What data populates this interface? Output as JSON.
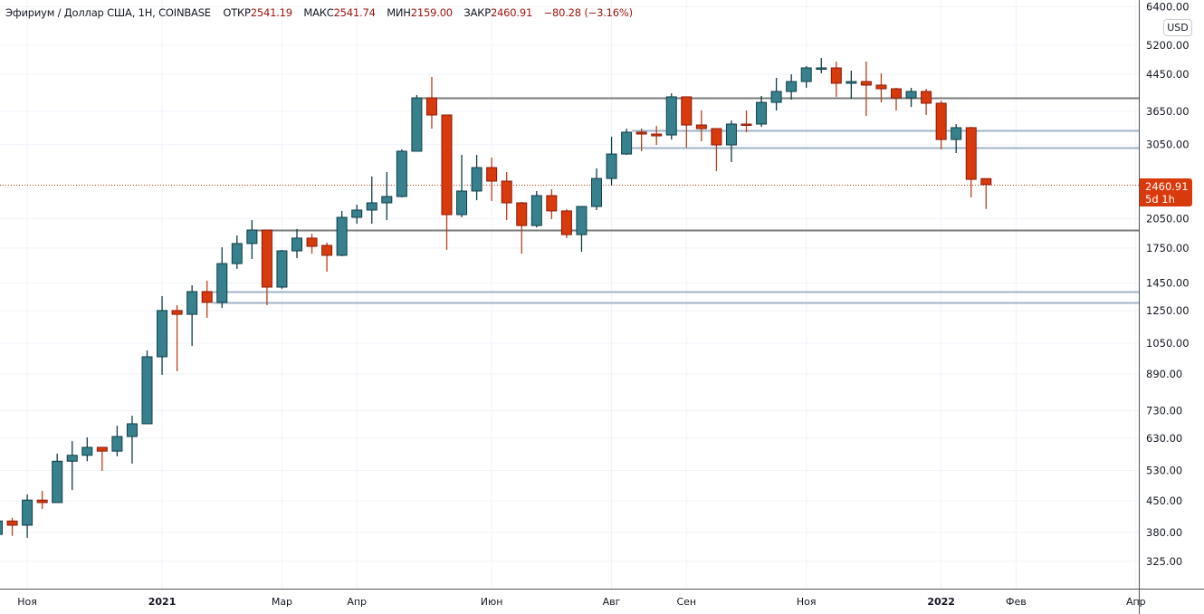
{
  "header": {
    "symbol": "Эфириум / Доллар США, 1Н, COINBASE",
    "open_label": "ОТКР",
    "open": "2541.19",
    "high_label": "МАКС",
    "high": "2541.74",
    "low_label": "МИН",
    "low": "2159.00",
    "close_label": "ЗАКР",
    "close": "2460.91",
    "change": "−80.28 (−3.16%)"
  },
  "currency_button": "USD",
  "price_label": {
    "price": "2460.91",
    "countdown": "5d 1h"
  },
  "colors": {
    "up": "#37818e",
    "up_border": "#0f3d47",
    "down": "#d83a0b",
    "down_border": "#8a1a0a",
    "level_dark": "#7b7b7b",
    "level_blue": "#9fb3c8",
    "last_price": "#d83a0b"
  },
  "chart_data": {
    "type": "candlestick",
    "scale": "log",
    "interval": "1W",
    "first_bar_date": "2020-10-19",
    "ylim": [
      290,
      6600
    ],
    "y_ticks": [
      "6400.00",
      "5200.00",
      "4450.00",
      "3650.00",
      "3050.00",
      "2050.00",
      "1750.00",
      "1450.00",
      "1250.00",
      "1050.00",
      "890.00",
      "730.00",
      "630.00",
      "530.00",
      "450.00",
      "380.00",
      "325.00"
    ],
    "x_labels": [
      {
        "date": "2020-11-02",
        "label": "Ноя",
        "bold": false
      },
      {
        "date": "2021-01-04",
        "label": "2021",
        "bold": true
      },
      {
        "date": "2021-03-01",
        "label": "Мар",
        "bold": false
      },
      {
        "date": "2021-04-05",
        "label": "Апр",
        "bold": false
      },
      {
        "date": "2021-06-07",
        "label": "Июн",
        "bold": false
      },
      {
        "date": "2021-08-02",
        "label": "Авг",
        "bold": false
      },
      {
        "date": "2021-09-06",
        "label": "Сен",
        "bold": false
      },
      {
        "date": "2021-11-01",
        "label": "Ноя",
        "bold": false
      },
      {
        "date": "2022-01-03",
        "label": "2022",
        "bold": true
      },
      {
        "date": "2022-02-07",
        "label": "Фев",
        "bold": false
      },
      {
        "date": "2022-04-04",
        "label": "Апр",
        "bold": false
      }
    ],
    "candles": [
      [
        376,
        404,
        370,
        404
      ],
      [
        404,
        411,
        373,
        395
      ],
      [
        395,
        466,
        369,
        452
      ],
      [
        452,
        475,
        431,
        446
      ],
      [
        446,
        580,
        446,
        557
      ],
      [
        557,
        620,
        477,
        575
      ],
      [
        575,
        633,
        557,
        600
      ],
      [
        600,
        600,
        529,
        588
      ],
      [
        588,
        674,
        572,
        636
      ],
      [
        636,
        711,
        550,
        681
      ],
      [
        681,
        1010,
        681,
        976
      ],
      [
        976,
        1352,
        886,
        1251
      ],
      [
        1251,
        1288,
        903,
        1226
      ],
      [
        1226,
        1433,
        1034,
        1385
      ],
      [
        1385,
        1468,
        1203,
        1307
      ],
      [
        1307,
        1757,
        1269,
        1610
      ],
      [
        1610,
        1872,
        1565,
        1793
      ],
      [
        1793,
        2033,
        1650,
        1928
      ],
      [
        1928,
        1928,
        1288,
        1419
      ],
      [
        1419,
        1733,
        1406,
        1724
      ],
      [
        1724,
        1938,
        1658,
        1846
      ],
      [
        1846,
        1890,
        1698,
        1766
      ],
      [
        1775,
        1802,
        1541,
        1683
      ],
      [
        1683,
        2136,
        1675,
        2064
      ],
      [
        2064,
        2209,
        1995,
        2146
      ],
      [
        2146,
        2569,
        1995,
        2231
      ],
      [
        2231,
        2632,
        2033,
        2308
      ],
      [
        2308,
        2973,
        2297,
        2944
      ],
      [
        2944,
        3980,
        2944,
        3921
      ],
      [
        3921,
        4387,
        3324,
        3576
      ],
      [
        3576,
        3576,
        1733,
        2094
      ],
      [
        2094,
        2887,
        2064,
        2377
      ],
      [
        2377,
        2887,
        2263,
        2696
      ],
      [
        2696,
        2845,
        2253,
        2507
      ],
      [
        2507,
        2632,
        2033,
        2231
      ],
      [
        2231,
        2242,
        1698,
        1975
      ],
      [
        1975,
        2377,
        1955,
        2319
      ],
      [
        2319,
        2400,
        2044,
        2136
      ],
      [
        2136,
        2157,
        1846,
        1881
      ],
      [
        1881,
        2188,
        1715,
        2188
      ],
      [
        2188,
        2683,
        2146,
        2543
      ],
      [
        2543,
        3182,
        2447,
        2900
      ],
      [
        2900,
        3324,
        2887,
        3260
      ],
      [
        3260,
        3324,
        2944,
        3228
      ],
      [
        3228,
        3373,
        3045,
        3197
      ],
      [
        3212,
        4017,
        3135,
        3942
      ],
      [
        3942,
        3942,
        3001,
        3389
      ],
      [
        3389,
        3664,
        3105,
        3324
      ],
      [
        3324,
        3324,
        2645,
        3045
      ],
      [
        3045,
        3472,
        2777,
        3406
      ],
      [
        3406,
        3664,
        3260,
        3389
      ],
      [
        3406,
        3961,
        3356,
        3827
      ],
      [
        3827,
        4365,
        3664,
        4058
      ],
      [
        4058,
        4450,
        3884,
        4280
      ],
      [
        4280,
        4649,
        4138,
        4605
      ],
      [
        4582,
        4858,
        4472,
        4605
      ],
      [
        4605,
        4764,
        3942,
        4240
      ],
      [
        4240,
        4539,
        3903,
        4280
      ],
      [
        4280,
        4764,
        3559,
        4199
      ],
      [
        4199,
        4472,
        3827,
        4117
      ],
      [
        4117,
        4138,
        3664,
        3921
      ],
      [
        3921,
        4138,
        3734,
        4058
      ],
      [
        4058,
        4117,
        3576,
        3809
      ],
      [
        3809,
        3864,
        2973,
        3135
      ],
      [
        3135,
        3406,
        2915,
        3341
      ],
      [
        3341,
        3356,
        2297,
        2531
      ],
      [
        2541.19,
        2541.74,
        2159.0,
        2460.91
      ]
    ],
    "candle_fields": [
      "open",
      "high",
      "low",
      "close"
    ],
    "levels": [
      {
        "price": 3915,
        "from": "2021-05-03",
        "style": "dark"
      },
      {
        "price": 3292,
        "from": "2021-08-09",
        "style": "blue"
      },
      {
        "price": 3001,
        "from": "2021-08-09",
        "style": "blue"
      },
      {
        "price": 1928,
        "from": "2021-02-15",
        "style": "dark"
      },
      {
        "price": 1385,
        "from": "2021-01-25",
        "style": "blue"
      },
      {
        "price": 1307,
        "from": "2021-01-25",
        "style": "blue"
      }
    ],
    "last_price": 2460.91
  }
}
